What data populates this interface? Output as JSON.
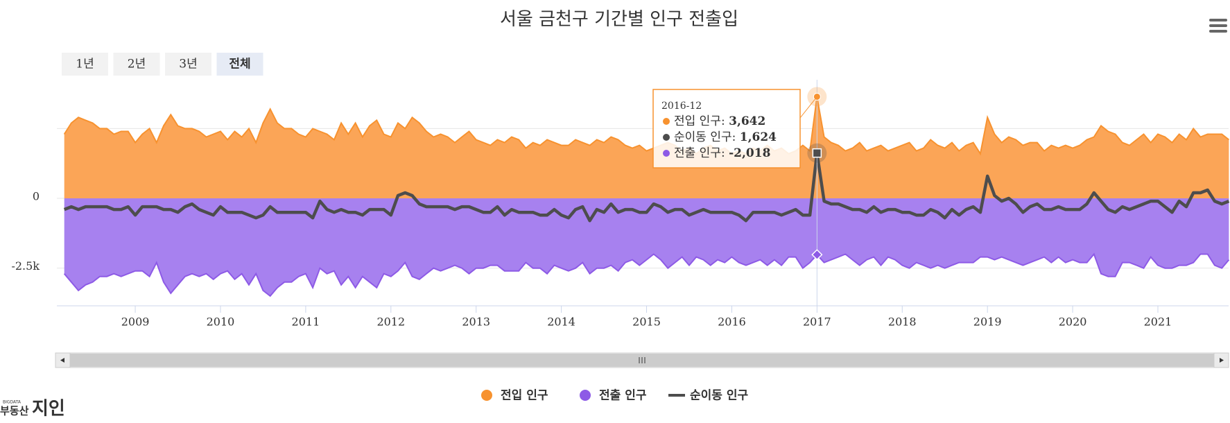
{
  "chart_data": {
    "type": "area",
    "title": "서울 금천구 기간별 인구 전출입",
    "buttons": [
      "1년",
      "2년",
      "3년",
      "전체"
    ],
    "selected_button": "전체",
    "x": [
      "2008-02",
      "2008-03",
      "2008-04",
      "2008-05",
      "2008-06",
      "2008-07",
      "2008-08",
      "2008-09",
      "2008-10",
      "2008-11",
      "2008-12",
      "2009-01",
      "2009-02",
      "2009-03",
      "2009-04",
      "2009-05",
      "2009-06",
      "2009-07",
      "2009-08",
      "2009-09",
      "2009-10",
      "2009-11",
      "2009-12",
      "2010-01",
      "2010-02",
      "2010-03",
      "2010-04",
      "2010-05",
      "2010-06",
      "2010-07",
      "2010-08",
      "2010-09",
      "2010-10",
      "2010-11",
      "2010-12",
      "2011-01",
      "2011-02",
      "2011-03",
      "2011-04",
      "2011-05",
      "2011-06",
      "2011-07",
      "2011-08",
      "2011-09",
      "2011-10",
      "2011-11",
      "2011-12",
      "2012-01",
      "2012-02",
      "2012-03",
      "2012-04",
      "2012-05",
      "2012-06",
      "2012-07",
      "2012-08",
      "2012-09",
      "2012-10",
      "2012-11",
      "2012-12",
      "2013-01",
      "2013-02",
      "2013-03",
      "2013-04",
      "2013-05",
      "2013-06",
      "2013-07",
      "2013-08",
      "2013-09",
      "2013-10",
      "2013-11",
      "2013-12",
      "2014-01",
      "2014-02",
      "2014-03",
      "2014-04",
      "2014-05",
      "2014-06",
      "2014-07",
      "2014-08",
      "2014-09",
      "2014-10",
      "2014-11",
      "2014-12",
      "2015-01",
      "2015-02",
      "2015-03",
      "2015-04",
      "2015-05",
      "2015-06",
      "2015-07",
      "2015-08",
      "2015-09",
      "2015-10",
      "2015-11",
      "2015-12",
      "2016-01",
      "2016-02",
      "2016-03",
      "2016-04",
      "2016-05",
      "2016-06",
      "2016-07",
      "2016-08",
      "2016-09",
      "2016-10",
      "2016-11",
      "2016-12",
      "2017-01",
      "2017-02",
      "2017-03",
      "2017-04",
      "2017-05",
      "2017-06",
      "2017-07",
      "2017-08",
      "2017-09",
      "2017-10",
      "2017-11",
      "2017-12",
      "2018-01",
      "2018-02",
      "2018-03",
      "2018-04",
      "2018-05",
      "2018-06",
      "2018-07",
      "2018-08",
      "2018-09",
      "2018-10",
      "2018-11",
      "2018-12",
      "2019-01",
      "2019-02",
      "2019-03",
      "2019-04",
      "2019-05",
      "2019-06",
      "2019-07",
      "2019-08",
      "2019-09",
      "2019-10",
      "2019-11",
      "2019-12",
      "2020-01",
      "2020-02",
      "2020-03",
      "2020-04",
      "2020-05",
      "2020-06",
      "2020-07",
      "2020-08",
      "2020-09",
      "2020-10",
      "2020-11",
      "2020-12",
      "2021-01",
      "2021-02",
      "2021-03",
      "2021-04",
      "2021-05",
      "2021-06",
      "2021-07",
      "2021-08",
      "2021-09",
      "2021-10"
    ],
    "series": [
      {
        "name": "전입 인구",
        "color": "#f7922f",
        "fill": "#fba557",
        "kind": "area",
        "values": [
          2300,
          2700,
          2900,
          2800,
          2700,
          2500,
          2500,
          2300,
          2400,
          2400,
          2000,
          2300,
          2500,
          2000,
          2600,
          3000,
          2600,
          2500,
          2500,
          2400,
          2200,
          2300,
          2400,
          2100,
          2400,
          2200,
          2500,
          2000,
          2700,
          3200,
          2700,
          2500,
          2500,
          2300,
          2200,
          2500,
          2400,
          2300,
          2100,
          2700,
          2300,
          2700,
          2200,
          2600,
          2800,
          2300,
          2200,
          2700,
          2500,
          2900,
          2700,
          2400,
          2200,
          2300,
          2200,
          2000,
          2200,
          2400,
          2100,
          2000,
          1900,
          2100,
          2000,
          2200,
          2100,
          1800,
          2000,
          1900,
          2100,
          2000,
          1900,
          1900,
          2100,
          2000,
          1900,
          2100,
          2000,
          2200,
          2100,
          1900,
          1800,
          1900,
          1700,
          1800,
          1900,
          2000,
          1900,
          1700,
          1800,
          1600,
          1800,
          1900,
          1700,
          1800,
          1600,
          1700,
          1600,
          1800,
          1700,
          1900,
          1700,
          1800,
          1600,
          1700,
          1900,
          1700,
          3642,
          2200,
          2000,
          1900,
          1700,
          1800,
          2000,
          1700,
          1800,
          1900,
          1700,
          1800,
          1900,
          2000,
          1700,
          1800,
          2100,
          1900,
          1800,
          2000,
          1700,
          1900,
          2000,
          1600,
          2900,
          2300,
          2000,
          2200,
          2100,
          1900,
          2000,
          2000,
          1700,
          1900,
          1800,
          1900,
          1800,
          1900,
          2100,
          2200,
          2600,
          2400,
          2300,
          2000,
          1900,
          2100,
          2300,
          2000,
          2300,
          2200,
          2000,
          2300,
          2100,
          2500,
          2200,
          2300,
          2300,
          2300,
          2100
        ]
      },
      {
        "name": "전출 인구",
        "color": "#8d5ae6",
        "fill": "#a781ef",
        "kind": "area",
        "values": [
          -2700,
          -3000,
          -3300,
          -3100,
          -3000,
          -2800,
          -2800,
          -2700,
          -2800,
          -2700,
          -2600,
          -2600,
          -2800,
          -2300,
          -3000,
          -3400,
          -3100,
          -2800,
          -2700,
          -2800,
          -2700,
          -2900,
          -2700,
          -2600,
          -2900,
          -2700,
          -3100,
          -2700,
          -3300,
          -3500,
          -3200,
          -3000,
          -3000,
          -2800,
          -2700,
          -3200,
          -2500,
          -2700,
          -2600,
          -3100,
          -2800,
          -3200,
          -2800,
          -3000,
          -3200,
          -2700,
          -2800,
          -2600,
          -2300,
          -2800,
          -2900,
          -2700,
          -2500,
          -2600,
          -2500,
          -2400,
          -2500,
          -2700,
          -2500,
          -2500,
          -2400,
          -2400,
          -2600,
          -2600,
          -2600,
          -2300,
          -2500,
          -2500,
          -2700,
          -2400,
          -2500,
          -2600,
          -2500,
          -2300,
          -2700,
          -2500,
          -2500,
          -2400,
          -2600,
          -2300,
          -2200,
          -2400,
          -2200,
          -2000,
          -2200,
          -2500,
          -2300,
          -2100,
          -2400,
          -2100,
          -2200,
          -2400,
          -2200,
          -2300,
          -2100,
          -2300,
          -2400,
          -2300,
          -2200,
          -2400,
          -2200,
          -2400,
          -2100,
          -2100,
          -2500,
          -2300,
          -2018,
          -2300,
          -2200,
          -2100,
          -2000,
          -2200,
          -2400,
          -2200,
          -2100,
          -2400,
          -2100,
          -2200,
          -2400,
          -2500,
          -2300,
          -2400,
          -2500,
          -2400,
          -2500,
          -2400,
          -2300,
          -2300,
          -2300,
          -2100,
          -2100,
          -2200,
          -2100,
          -2200,
          -2300,
          -2400,
          -2300,
          -2200,
          -2100,
          -2300,
          -2100,
          -2300,
          -2200,
          -2300,
          -2300,
          -2000,
          -2700,
          -2800,
          -2800,
          -2300,
          -2300,
          -2400,
          -2500,
          -2100,
          -2400,
          -2500,
          -2500,
          -2400,
          -2400,
          -2300,
          -2000,
          -2000,
          -2400,
          -2500,
          -2200
        ]
      },
      {
        "name": "순이동 인구",
        "color": "#4d4d4d",
        "kind": "line",
        "values": [
          -400,
          -300,
          -400,
          -300,
          -300,
          -300,
          -300,
          -400,
          -400,
          -300,
          -600,
          -300,
          -300,
          -300,
          -400,
          -400,
          -500,
          -300,
          -200,
          -400,
          -500,
          -600,
          -300,
          -500,
          -500,
          -500,
          -600,
          -700,
          -600,
          -300,
          -500,
          -500,
          -500,
          -500,
          -500,
          -700,
          -100,
          -400,
          -500,
          -400,
          -500,
          -500,
          -600,
          -400,
          -400,
          -400,
          -600,
          100,
          200,
          100,
          -200,
          -300,
          -300,
          -300,
          -300,
          -400,
          -300,
          -300,
          -400,
          -500,
          -500,
          -300,
          -600,
          -400,
          -500,
          -500,
          -500,
          -600,
          -600,
          -400,
          -600,
          -700,
          -400,
          -300,
          -800,
          -400,
          -500,
          -200,
          -500,
          -400,
          -400,
          -500,
          -500,
          -200,
          -300,
          -500,
          -400,
          -400,
          -600,
          -500,
          -400,
          -500,
          -500,
          -500,
          -500,
          -600,
          -800,
          -500,
          -500,
          -500,
          -500,
          -600,
          -500,
          -400,
          -600,
          -600,
          1624,
          -100,
          -200,
          -200,
          -300,
          -400,
          -400,
          -500,
          -300,
          -500,
          -400,
          -400,
          -500,
          -500,
          -600,
          -600,
          -400,
          -500,
          -700,
          -400,
          -600,
          -400,
          -300,
          -500,
          800,
          100,
          -100,
          0,
          -200,
          -500,
          -300,
          -200,
          -400,
          -400,
          -300,
          -400,
          -400,
          -400,
          -200,
          200,
          -100,
          -400,
          -500,
          -300,
          -400,
          -300,
          -200,
          -100,
          -100,
          -300,
          -500,
          -100,
          -300,
          200,
          200,
          300,
          -100,
          -200,
          -100
        ]
      }
    ],
    "xlim": [
      2008.08,
      2021.83
    ],
    "xticks": [
      2009,
      2010,
      2011,
      2012,
      2013,
      2014,
      2015,
      2016,
      2017,
      2018,
      2019,
      2020,
      2021
    ],
    "ylim": [
      -3850,
      4250
    ],
    "yticks": [
      {
        "value": -2500,
        "label": "-2.5k"
      },
      {
        "value": 0,
        "label": "0"
      },
      {
        "value": 2500,
        "label": null
      }
    ],
    "grid": true,
    "legend": "bottom",
    "tooltip": {
      "x": "2016-12",
      "values": [
        "3,642",
        "1,624",
        "-2,018"
      ]
    },
    "logo": {
      "tag": "BIGDATA",
      "brand": "부동산",
      "name": "지인"
    }
  }
}
